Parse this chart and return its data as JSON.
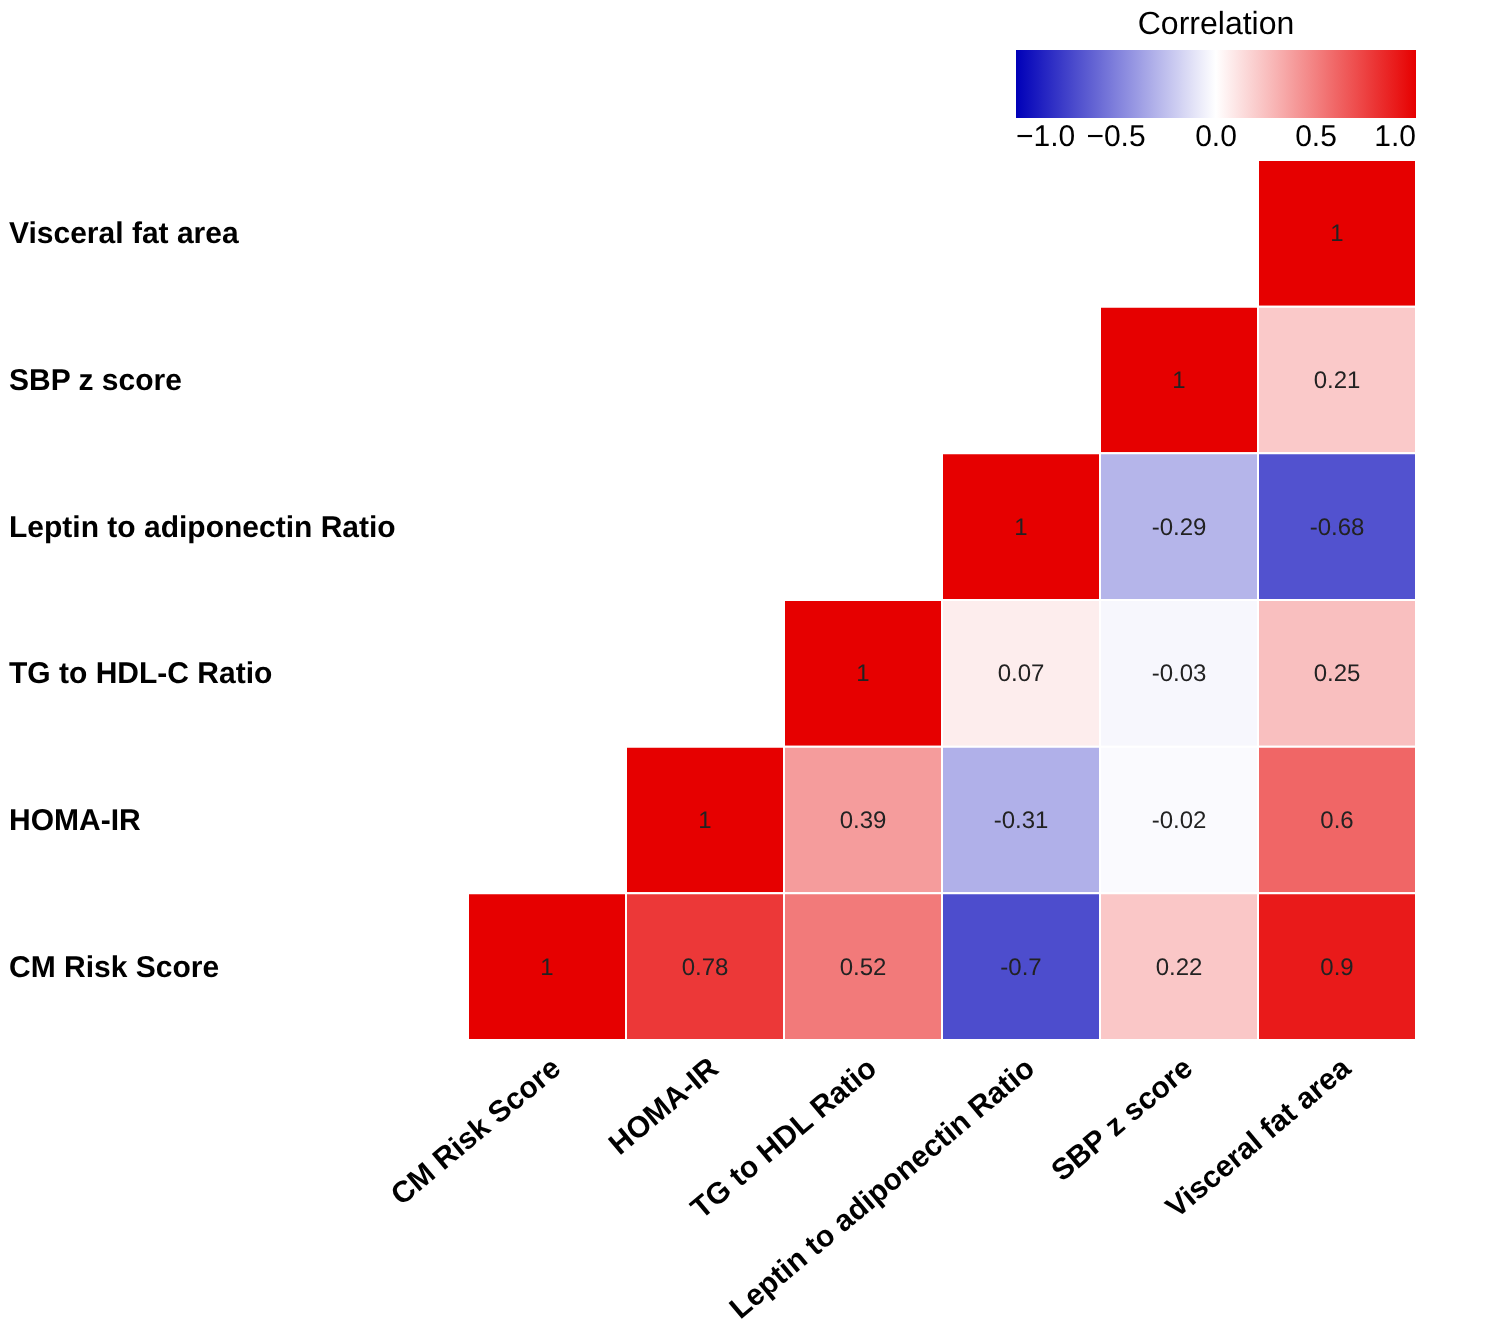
{
  "chart_data": {
    "type": "heatmap",
    "legend_title": "Correlation",
    "categories": [
      "CM Risk Score",
      "HOMA-IR",
      "TG to HDL Ratio",
      "Leptin to adiponectin Ratio",
      "SBP z score",
      "Visceral fat area"
    ],
    "y_categories": [
      "Visceral fat area",
      "SBP z score",
      "Leptin to adiponectin Ratio",
      "TG to HDL-C Ratio",
      "HOMA-IR",
      "CM Risk Score"
    ],
    "cells": [
      [
        null,
        null,
        null,
        null,
        null,
        1
      ],
      [
        null,
        null,
        null,
        null,
        1,
        0.21
      ],
      [
        null,
        null,
        null,
        1,
        -0.29,
        -0.68
      ],
      [
        null,
        null,
        1,
        0.07,
        -0.03,
        0.25
      ],
      [
        null,
        1,
        0.39,
        -0.31,
        -0.02,
        0.6
      ],
      [
        1,
        0.78,
        0.52,
        -0.7,
        0.22,
        0.9
      ]
    ],
    "clim": [
      -1,
      1
    ],
    "cticks": [
      {
        "value": -1,
        "label": "−1.0"
      },
      {
        "value": -0.5,
        "label": "−0.5"
      },
      {
        "value": 0,
        "label": "0.0"
      },
      {
        "value": 0.5,
        "label": "0.5"
      },
      {
        "value": 1,
        "label": "1.0"
      }
    ],
    "data_labels": true
  }
}
